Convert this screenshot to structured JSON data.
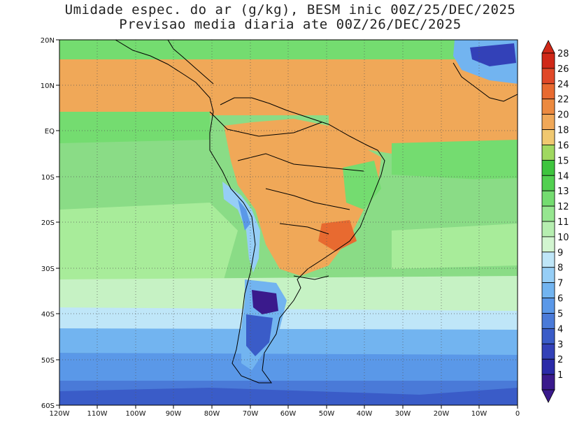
{
  "title": {
    "line1": "Umidade espec. do ar (g/kg), BESM inic 00Z/25/DEC/2025",
    "line2": "Previsao media diaria ate 00Z/26/DEC/2025"
  },
  "axes": {
    "lat_labels": [
      "20N",
      "10N",
      "EQ",
      "10S",
      "20S",
      "30S",
      "40S",
      "50S",
      "60S"
    ],
    "lon_labels": [
      "120W",
      "110W",
      "100W",
      "90W",
      "80W",
      "70W",
      "60W",
      "50W",
      "40W",
      "30W",
      "20W",
      "10W",
      "0"
    ]
  },
  "colorbar": {
    "levels": [
      "1",
      "2",
      "3",
      "4",
      "5",
      "6",
      "7",
      "8",
      "9",
      "10",
      "11",
      "12",
      "13",
      "14",
      "15",
      "16",
      "18",
      "20",
      "22",
      "24",
      "26",
      "28"
    ],
    "colors": [
      "#3a1a8c",
      "#2a2aa8",
      "#3341b8",
      "#3a5cc8",
      "#4a7ad8",
      "#5a98e8",
      "#72b4f0",
      "#96cef6",
      "#bfe6f8",
      "#d2f5d0",
      "#b6eeb0",
      "#96e690",
      "#74dc70",
      "#52d050",
      "#3ec43e",
      "#a0d860",
      "#f0c870",
      "#f0a858",
      "#ec8a40",
      "#e86a30",
      "#e04828",
      "#d02818"
    ]
  },
  "map_regions": {
    "ocean_band_colors": [
      "#8adc86",
      "#f0a858",
      "#74dc70",
      "#a8ec9a",
      "#c6f2c4",
      "#bfe6f8",
      "#5a98e8",
      "#3341b8"
    ]
  }
}
